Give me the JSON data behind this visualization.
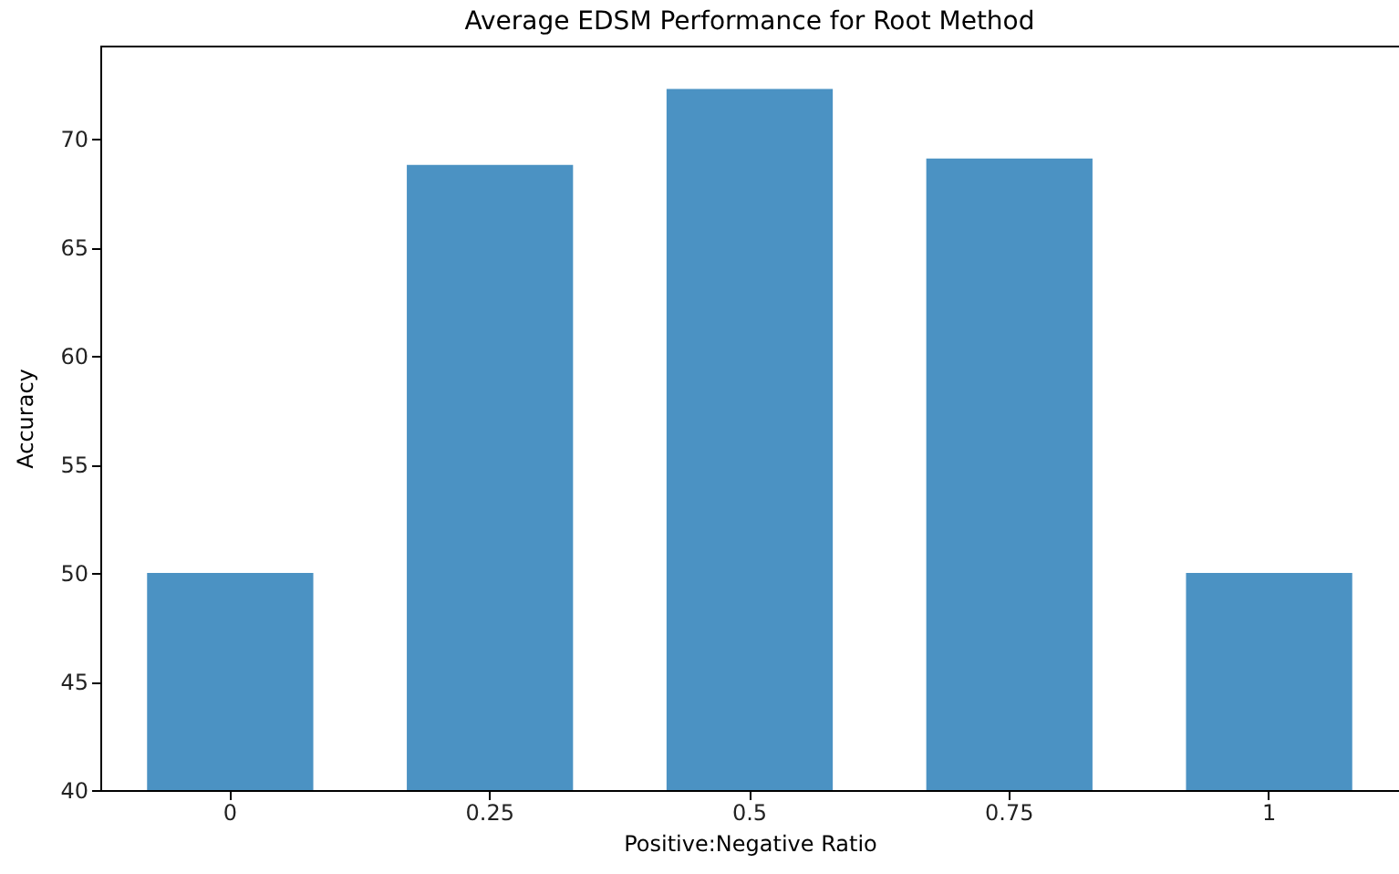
{
  "chart_data": {
    "type": "bar",
    "title": "Average EDSM Performance for Root Method",
    "xlabel": "Positive:Negative Ratio",
    "ylabel": "Accuracy",
    "categories": [
      "0",
      "0.25",
      "0.5",
      "0.75",
      "1"
    ],
    "values": [
      50,
      68.8,
      72.3,
      69.1,
      50
    ],
    "color": "#4b92c3",
    "ylim": [
      40,
      74.3
    ],
    "yticks": [
      40,
      45,
      50,
      55,
      60,
      65,
      70
    ],
    "grid": false
  }
}
